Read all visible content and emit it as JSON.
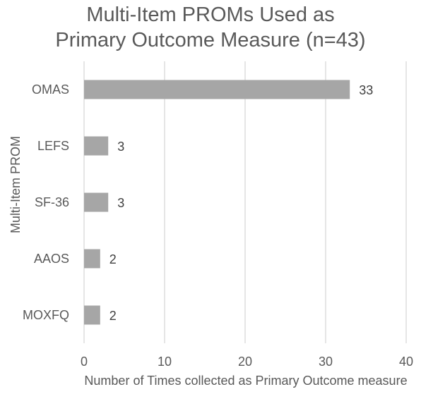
{
  "chart_data": {
    "type": "bar",
    "orientation": "horizontal",
    "title": [
      "Multi-Item PROMs Used as",
      "Primary Outcome Measure (n=43)"
    ],
    "categories": [
      "OMAS",
      "LEFS",
      "SF-36",
      "AAOS",
      "MOXFQ"
    ],
    "values": [
      33,
      3,
      3,
      2,
      2
    ],
    "data_labels": [
      "33",
      "3",
      "3",
      "2",
      "2"
    ],
    "xlabel": "Number of Times collected as Primary Outcome measure",
    "ylabel": "Multi-Item PROM",
    "xlim": [
      0,
      40
    ],
    "xticks": [
      "0",
      "10",
      "20",
      "30",
      "40"
    ],
    "grid": "vertical",
    "legend": "none",
    "colors": {
      "bar": "#a6a6a6",
      "grid": "#d9d9d9",
      "text": "#595959",
      "label": "#404040"
    }
  }
}
